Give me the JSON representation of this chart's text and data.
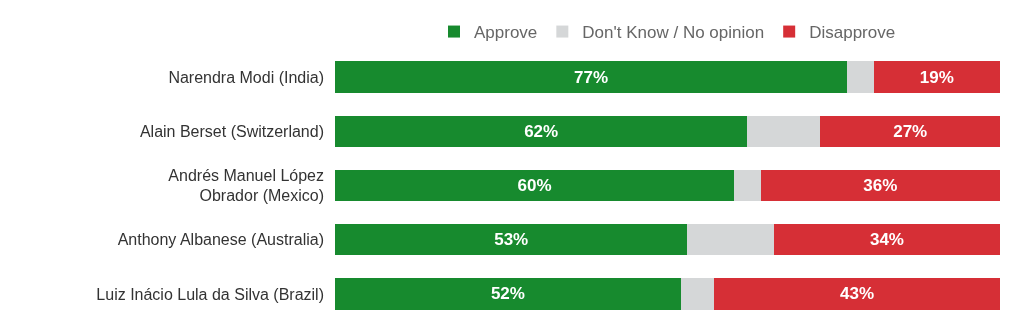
{
  "chart_data": {
    "type": "bar",
    "orientation": "horizontal",
    "stacked": true,
    "categories": [
      "Narendra Modi (India)",
      "Alain Berset (Switzerland)",
      "Andrés Manuel López Obrador (Mexico)",
      "Anthony Albanese (Australia)",
      "Luiz Inácio Lula da Silva (Brazil)"
    ],
    "series": [
      {
        "name": "Approve",
        "color": "#178a2e",
        "values": [
          77,
          62,
          60,
          53,
          52
        ],
        "value_labels": [
          "77%",
          "62%",
          "60%",
          "53%",
          "52%"
        ]
      },
      {
        "name": "Don't Know / No opinion",
        "color": "#d5d7d8",
        "values": [
          4,
          11,
          4,
          13,
          5
        ],
        "value_labels": [
          null,
          null,
          null,
          null,
          null
        ]
      },
      {
        "name": "Disapprove",
        "color": "#d62f36",
        "values": [
          19,
          27,
          36,
          34,
          43
        ],
        "value_labels": [
          "19%",
          "27%",
          "36%",
          "34%",
          "43%"
        ]
      }
    ],
    "xlim": [
      0,
      100
    ],
    "tick_labels": "y",
    "legend": "top"
  }
}
